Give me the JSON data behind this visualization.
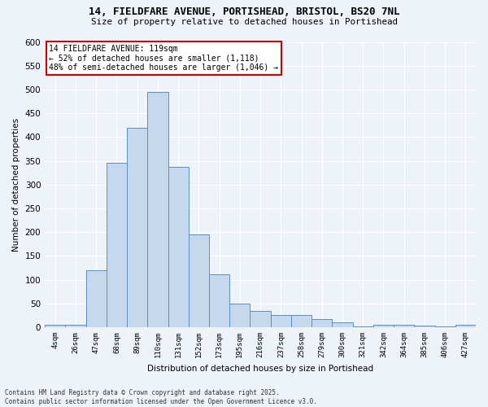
{
  "title_line1": "14, FIELDFARE AVENUE, PORTISHEAD, BRISTOL, BS20 7NL",
  "title_line2": "Size of property relative to detached houses in Portishead",
  "xlabel": "Distribution of detached houses by size in Portishead",
  "ylabel": "Number of detached properties",
  "categories": [
    "4sqm",
    "26sqm",
    "47sqm",
    "68sqm",
    "89sqm",
    "110sqm",
    "131sqm",
    "152sqm",
    "173sqm",
    "195sqm",
    "216sqm",
    "237sqm",
    "258sqm",
    "279sqm",
    "300sqm",
    "321sqm",
    "342sqm",
    "364sqm",
    "385sqm",
    "406sqm",
    "427sqm"
  ],
  "values": [
    5,
    5,
    120,
    345,
    420,
    495,
    338,
    195,
    112,
    50,
    35,
    26,
    26,
    18,
    10,
    2,
    5,
    5,
    3,
    2,
    5
  ],
  "bar_color": "#c5d8ee",
  "bar_edge_color": "#5b8fc9",
  "annotation_title": "14 FIELDFARE AVENUE: 119sqm",
  "annotation_line1": "← 52% of detached houses are smaller (1,118)",
  "annotation_line2": "48% of semi-detached houses are larger (1,046) →",
  "ylim": [
    0,
    600
  ],
  "yticks": [
    0,
    50,
    100,
    150,
    200,
    250,
    300,
    350,
    400,
    450,
    500,
    550,
    600
  ],
  "footer_line1": "Contains HM Land Registry data © Crown copyright and database right 2025.",
  "footer_line2": "Contains public sector information licensed under the Open Government Licence v3.0.",
  "bg_color": "#eef2f9",
  "grid_color": "#ffffff",
  "annotation_box_color": "#ffffff",
  "annotation_box_edge": "#cc0000"
}
